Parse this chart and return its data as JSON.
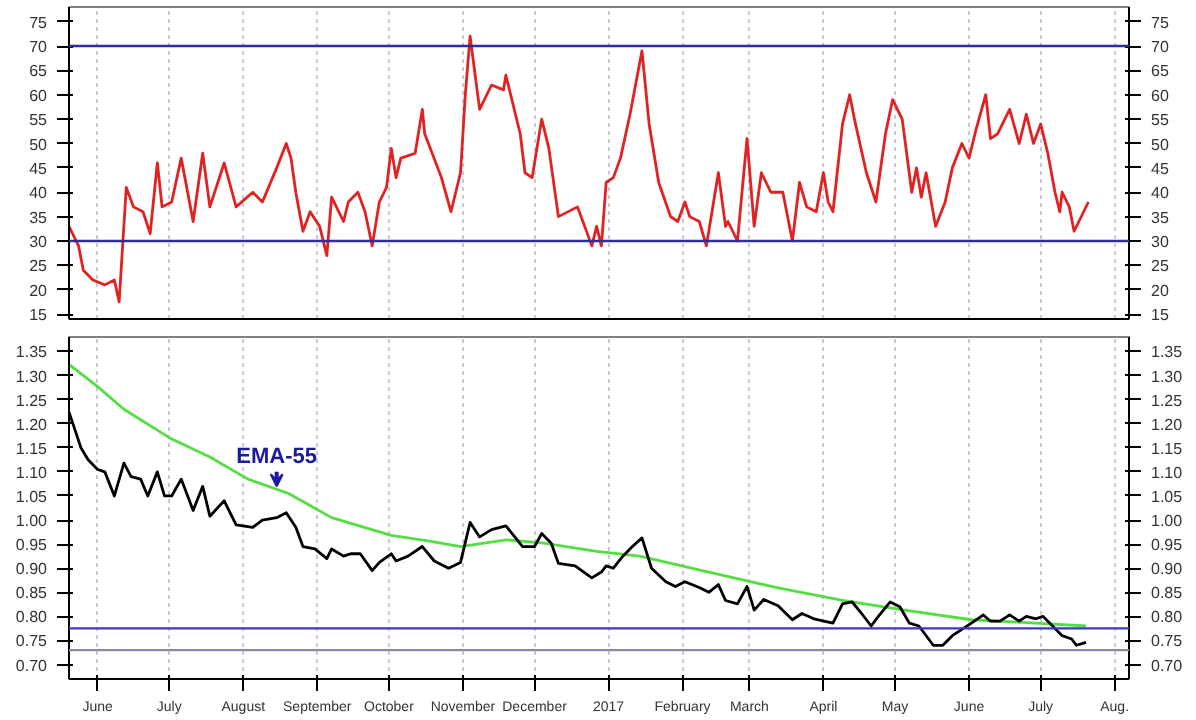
{
  "chart_data": [
    {
      "type": "line",
      "xlim": [
        "2016-05-20",
        "2017-08-07"
      ],
      "ylim": [
        14,
        78
      ],
      "yticks": [
        15,
        20,
        25,
        30,
        35,
        40,
        45,
        50,
        55,
        60,
        65,
        70,
        75
      ],
      "y2lim": [
        14,
        78
      ],
      "y2ticks": [
        15,
        20,
        25,
        30,
        35,
        40,
        45,
        50,
        55,
        60,
        65,
        70,
        75
      ],
      "xticks": [
        {
          "value": "2016-06-01",
          "label": null
        },
        {
          "value": "2016-07-01",
          "label": null
        },
        {
          "value": "2016-08-01",
          "label": null
        },
        {
          "value": "2016-09-01",
          "label": null
        },
        {
          "value": "2016-10-01",
          "label": null
        },
        {
          "value": "2016-11-01",
          "label": null
        },
        {
          "value": "2016-12-01",
          "label": null
        },
        {
          "value": "2017-01-01",
          "label": null
        },
        {
          "value": "2017-02-01",
          "label": null
        },
        {
          "value": "2017-03-01",
          "label": null
        },
        {
          "value": "2017-04-01",
          "label": null
        },
        {
          "value": "2017-05-01",
          "label": null
        },
        {
          "value": "2017-06-01",
          "label": null
        },
        {
          "value": "2017-07-01",
          "label": null
        },
        {
          "value": "2017-08-01",
          "label": null
        }
      ],
      "tick_labels": "y",
      "grid": "x",
      "ref_lines": [
        {
          "axis": "y",
          "value": 70,
          "color": "#2e2e9a"
        },
        {
          "axis": "y",
          "value": 30,
          "color": "#2e2e9a"
        }
      ],
      "series": [
        {
          "color": "#e02222",
          "x": [
            "2016-05-20",
            "2016-05-24",
            "2016-05-26",
            "2016-05-30",
            "2016-06-04",
            "2016-06-08",
            "2016-06-10",
            "2016-06-13",
            "2016-06-16",
            "2016-06-20",
            "2016-06-23",
            "2016-06-26",
            "2016-06-28",
            "2016-07-02",
            "2016-07-06",
            "2016-07-11",
            "2016-07-15",
            "2016-07-18",
            "2016-07-24",
            "2016-07-29",
            "2016-08-05",
            "2016-08-09",
            "2016-08-15",
            "2016-08-19",
            "2016-08-21",
            "2016-08-23",
            "2016-08-26",
            "2016-08-29",
            "2016-09-02",
            "2016-09-05",
            "2016-09-07",
            "2016-09-12",
            "2016-09-14",
            "2016-09-18",
            "2016-09-21",
            "2016-09-24",
            "2016-09-27",
            "2016-09-30",
            "2016-10-02",
            "2016-10-04",
            "2016-10-06",
            "2016-10-12",
            "2016-10-15",
            "2016-10-16",
            "2016-10-23",
            "2016-10-27",
            "2016-10-31",
            "2016-11-02",
            "2016-11-04",
            "2016-11-08",
            "2016-11-13",
            "2016-11-18",
            "2016-11-19",
            "2016-11-25",
            "2016-11-27",
            "2016-11-30",
            "2016-12-04",
            "2016-12-07",
            "2016-12-11",
            "2016-12-19",
            "2016-12-25",
            "2016-12-27",
            "2016-12-29",
            "2016-12-31",
            "2017-01-03",
            "2017-01-06",
            "2017-01-10",
            "2017-01-15",
            "2017-01-18",
            "2017-01-22",
            "2017-01-27",
            "2017-01-30",
            "2017-02-02",
            "2017-02-04",
            "2017-02-08",
            "2017-02-11",
            "2017-02-16",
            "2017-02-19",
            "2017-02-20",
            "2017-02-24",
            "2017-02-28",
            "2017-03-03",
            "2017-03-06",
            "2017-03-10",
            "2017-03-15",
            "2017-03-19",
            "2017-03-22",
            "2017-03-25",
            "2017-03-29",
            "2017-04-01",
            "2017-04-03",
            "2017-04-05",
            "2017-04-09",
            "2017-04-12",
            "2017-04-14",
            "2017-04-19",
            "2017-04-23",
            "2017-04-27",
            "2017-04-30",
            "2017-05-04",
            "2017-05-08",
            "2017-05-10",
            "2017-05-12",
            "2017-05-14",
            "2017-05-18",
            "2017-05-22",
            "2017-05-25",
            "2017-05-29",
            "2017-06-01",
            "2017-06-04",
            "2017-06-08",
            "2017-06-10",
            "2017-06-13",
            "2017-06-18",
            "2017-06-22",
            "2017-06-25",
            "2017-06-28",
            "2017-07-01",
            "2017-07-04",
            "2017-07-07",
            "2017-07-09",
            "2017-07-10",
            "2017-07-13",
            "2017-07-15",
            "2017-07-17",
            "2017-07-21"
          ],
          "values": [
            33,
            29,
            24,
            22,
            21,
            22,
            17.5,
            41,
            37,
            36,
            31.5,
            46,
            37,
            38,
            47,
            34,
            48,
            37,
            46,
            37,
            40,
            38,
            45,
            50,
            47,
            40,
            32,
            36,
            33,
            27,
            39,
            34,
            38,
            40,
            36,
            29,
            38,
            41,
            49,
            43,
            47,
            48,
            57,
            52,
            43,
            36,
            44,
            60,
            72,
            57,
            62,
            61,
            64,
            52,
            44,
            43,
            55,
            49,
            35,
            37,
            29,
            33,
            29,
            42,
            43,
            47,
            56,
            69,
            54,
            42,
            35,
            34,
            38,
            35,
            34,
            29,
            44,
            33,
            34,
            30,
            51,
            33,
            44,
            40,
            40,
            30,
            42,
            37,
            36,
            44,
            38,
            36,
            54,
            60,
            55,
            44,
            38,
            52,
            59,
            55,
            40,
            45,
            39,
            44,
            33,
            38,
            45,
            50,
            47,
            53,
            60,
            51,
            52,
            57,
            50,
            56,
            50,
            54,
            48,
            40,
            36,
            40,
            37,
            32,
            34,
            38
          ]
        }
      ]
    },
    {
      "type": "line",
      "xlim": [
        "2016-05-20",
        "2017-08-07"
      ],
      "ylim": [
        0.67,
        1.38
      ],
      "yticks": [
        {
          "value": 0.7,
          "label": "0.70"
        },
        0.75,
        {
          "value": 0.8,
          "label": "0.80"
        },
        0.85,
        {
          "value": 0.9,
          "label": "0.90"
        },
        0.95,
        {
          "value": 1.0,
          "label": "1.00"
        },
        1.05,
        {
          "value": 1.1,
          "label": "1.10"
        },
        1.15,
        {
          "value": 1.2,
          "label": "1.20"
        },
        1.25,
        {
          "value": 1.3,
          "label": "1.30"
        },
        1.35
      ],
      "y2lim": [
        0.67,
        1.38
      ],
      "y2ticks": [
        {
          "value": 0.7,
          "label": "0.70"
        },
        0.75,
        {
          "value": 0.8,
          "label": "0.80"
        },
        0.85,
        {
          "value": 0.9,
          "label": "0.90"
        },
        0.95,
        {
          "value": 1.0,
          "label": "1.00"
        },
        1.05,
        {
          "value": 1.1,
          "label": "1.10"
        },
        1.15,
        {
          "value": 1.2,
          "label": "1.20"
        },
        1.25,
        {
          "value": 1.3,
          "label": "1.30"
        },
        1.35
      ],
      "xticks": [
        {
          "value": "2016-06-01",
          "label": "June"
        },
        {
          "value": "2016-07-01",
          "label": "July"
        },
        {
          "value": "2016-08-01",
          "label": "August"
        },
        {
          "value": "2016-09-01",
          "label": "September"
        },
        {
          "value": "2016-10-01",
          "label": "October"
        },
        {
          "value": "2016-11-01",
          "label": "November"
        },
        {
          "value": "2016-12-01",
          "label": "December"
        },
        {
          "value": "2017-01-01",
          "label": "2017"
        },
        {
          "value": "2017-02-01",
          "label": "February"
        },
        {
          "value": "2017-03-01",
          "label": "March"
        },
        {
          "value": "2017-04-01",
          "label": "April"
        },
        {
          "value": "2017-05-01",
          "label": "May"
        },
        {
          "value": "2017-06-01",
          "label": "June"
        },
        {
          "value": "2017-07-01",
          "label": "July"
        },
        {
          "value": "2017-08-01",
          "label": "Aug."
        }
      ],
      "grid": "x",
      "ref_lines": [
        {
          "axis": "y",
          "value": 0.775,
          "color": "#3a3ac0"
        },
        {
          "axis": "y",
          "value": 0.73,
          "color": "#8a8aa8"
        }
      ],
      "annotations": [
        {
          "text": "EMA-55",
          "x": "2016-08-15",
          "y": 1.06
        }
      ],
      "series": [
        {
          "color": "#55dd44",
          "x": [
            "2016-05-20",
            "2016-06-01",
            "2016-06-12",
            "2016-07-01",
            "2016-07-18",
            "2016-08-03",
            "2016-08-20",
            "2016-09-07",
            "2016-10-02",
            "2016-10-18",
            "2016-10-31",
            "2016-11-19",
            "2016-12-05",
            "2016-12-27",
            "2017-01-14",
            "2017-02-12",
            "2017-03-13",
            "2017-04-09",
            "2017-05-05",
            "2017-06-02",
            "2017-06-29",
            "2017-07-20"
          ],
          "values": [
            1.323,
            1.277,
            1.23,
            1.171,
            1.131,
            1.085,
            1.055,
            1.005,
            0.968,
            0.956,
            0.945,
            0.959,
            0.952,
            0.935,
            0.925,
            0.892,
            0.859,
            0.833,
            0.813,
            0.793,
            0.786,
            0.78
          ]
        },
        {
          "color": "#000000",
          "x": [
            "2016-05-20",
            "2016-05-23",
            "2016-05-25",
            "2016-05-28",
            "2016-06-01",
            "2016-06-04",
            "2016-06-08",
            "2016-06-12",
            "2016-06-15",
            "2016-06-19",
            "2016-06-22",
            "2016-06-26",
            "2016-06-29",
            "2016-07-02",
            "2016-07-06",
            "2016-07-11",
            "2016-07-15",
            "2016-07-18",
            "2016-07-24",
            "2016-07-29",
            "2016-08-05",
            "2016-08-09",
            "2016-08-15",
            "2016-08-19",
            "2016-08-23",
            "2016-08-26",
            "2016-08-31",
            "2016-09-05",
            "2016-09-07",
            "2016-09-12",
            "2016-09-15",
            "2016-09-19",
            "2016-09-24",
            "2016-09-27",
            "2016-10-02",
            "2016-10-04",
            "2016-10-09",
            "2016-10-15",
            "2016-10-20",
            "2016-10-26",
            "2016-10-31",
            "2016-11-04",
            "2016-11-08",
            "2016-11-13",
            "2016-11-19",
            "2016-11-26",
            "2016-12-01",
            "2016-12-04",
            "2016-12-08",
            "2016-12-11",
            "2016-12-18",
            "2016-12-25",
            "2016-12-29",
            "2016-12-31",
            "2017-01-03",
            "2017-01-07",
            "2017-01-11",
            "2017-01-15",
            "2017-01-19",
            "2017-01-25",
            "2017-01-29",
            "2017-02-02",
            "2017-02-08",
            "2017-02-12",
            "2017-02-16",
            "2017-02-19",
            "2017-02-24",
            "2017-02-28",
            "2017-03-03",
            "2017-03-07",
            "2017-03-13",
            "2017-03-19",
            "2017-03-23",
            "2017-03-28",
            "2017-04-05",
            "2017-04-09",
            "2017-04-13",
            "2017-04-17",
            "2017-04-21",
            "2017-04-24",
            "2017-04-29",
            "2017-05-03",
            "2017-05-07",
            "2017-05-11",
            "2017-05-17",
            "2017-05-21",
            "2017-05-25",
            "2017-05-29",
            "2017-06-02",
            "2017-06-07",
            "2017-06-10",
            "2017-06-14",
            "2017-06-18",
            "2017-06-22",
            "2017-06-25",
            "2017-06-29",
            "2017-07-02",
            "2017-07-06",
            "2017-07-10",
            "2017-07-14",
            "2017-07-16",
            "2017-07-20"
          ],
          "values": [
            1.224,
            1.18,
            1.15,
            1.125,
            1.105,
            1.1,
            1.05,
            1.118,
            1.09,
            1.085,
            1.05,
            1.1,
            1.05,
            1.05,
            1.085,
            1.02,
            1.07,
            1.008,
            1.04,
            0.99,
            0.985,
            1.0,
            1.005,
            1.015,
            0.985,
            0.945,
            0.94,
            0.92,
            0.94,
            0.925,
            0.93,
            0.93,
            0.895,
            0.912,
            0.93,
            0.915,
            0.925,
            0.945,
            0.915,
            0.9,
            0.912,
            0.995,
            0.965,
            0.98,
            0.988,
            0.945,
            0.945,
            0.972,
            0.952,
            0.91,
            0.905,
            0.88,
            0.892,
            0.905,
            0.9,
            0.925,
            0.945,
            0.963,
            0.9,
            0.872,
            0.862,
            0.872,
            0.86,
            0.85,
            0.866,
            0.833,
            0.826,
            0.862,
            0.813,
            0.835,
            0.822,
            0.793,
            0.806,
            0.795,
            0.786,
            0.826,
            0.83,
            0.806,
            0.78,
            0.8,
            0.83,
            0.82,
            0.786,
            0.78,
            0.74,
            0.74,
            0.76,
            0.773,
            0.786,
            0.803,
            0.79,
            0.79,
            0.803,
            0.79,
            0.8,
            0.795,
            0.8,
            0.78,
            0.76,
            0.753,
            0.74,
            0.746
          ]
        }
      ]
    }
  ]
}
